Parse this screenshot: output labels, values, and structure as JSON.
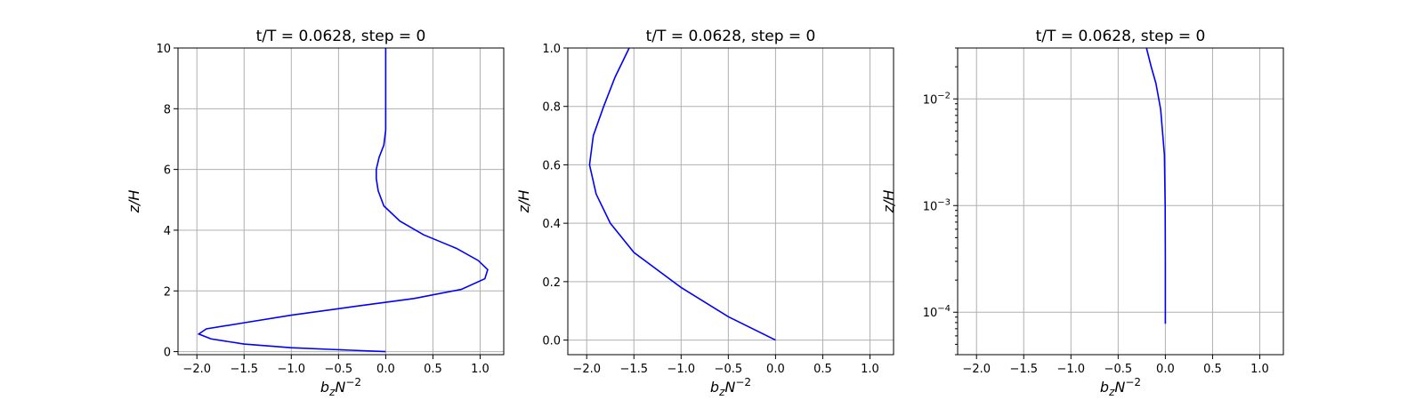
{
  "chart_data": [
    {
      "type": "line",
      "title": "t/T = 0.0628, step = 0",
      "xlabel": "b",
      "xlabel_sub": "z",
      "xlabel_N": "N",
      "xlabel_exp": "−2",
      "ylabel": "z/H",
      "xlim": [
        -2.2,
        1.25
      ],
      "ylim": [
        -0.1,
        10
      ],
      "yscale": "linear",
      "grid": true,
      "xticks": [
        -2.0,
        -1.5,
        -1.0,
        -0.5,
        0.0,
        0.5,
        1.0
      ],
      "xtick_labels": [
        "−2.0",
        "−1.5",
        "−1.0",
        "−0.5",
        "0.0",
        "0.5",
        "1.0"
      ],
      "yticks": [
        0,
        2,
        4,
        6,
        8,
        10
      ],
      "ytick_labels": [
        "0",
        "2",
        "4",
        "6",
        "8",
        "10"
      ],
      "series": [
        {
          "color": "#0000ff",
          "points": [
            [
              0.0,
              0.0
            ],
            [
              -0.4,
              0.05
            ],
            [
              -1.0,
              0.13
            ],
            [
              -1.5,
              0.25
            ],
            [
              -1.85,
              0.42
            ],
            [
              -1.98,
              0.58
            ],
            [
              -1.9,
              0.75
            ],
            [
              -1.5,
              0.95
            ],
            [
              -1.0,
              1.2
            ],
            [
              -0.3,
              1.5
            ],
            [
              0.3,
              1.75
            ],
            [
              0.8,
              2.05
            ],
            [
              1.05,
              2.4
            ],
            [
              1.08,
              2.7
            ],
            [
              0.98,
              3.0
            ],
            [
              0.75,
              3.4
            ],
            [
              0.4,
              3.85
            ],
            [
              0.15,
              4.3
            ],
            [
              -0.02,
              4.8
            ],
            [
              -0.08,
              5.3
            ],
            [
              -0.1,
              5.7
            ],
            [
              -0.1,
              6.0
            ],
            [
              -0.07,
              6.4
            ],
            [
              -0.02,
              6.8
            ],
            [
              0.0,
              7.3
            ],
            [
              0.0,
              8.0
            ],
            [
              0.0,
              10.0
            ]
          ]
        }
      ]
    },
    {
      "type": "line",
      "title": "t/T = 0.0628, step = 0",
      "xlabel": "b",
      "xlabel_sub": "z",
      "xlabel_N": "N",
      "xlabel_exp": "−2",
      "ylabel": "z/H",
      "xlim": [
        -2.2,
        1.25
      ],
      "ylim": [
        -0.05,
        1.0
      ],
      "yscale": "linear",
      "grid": true,
      "xticks": [
        -2.0,
        -1.5,
        -1.0,
        -0.5,
        0.0,
        0.5,
        1.0
      ],
      "xtick_labels": [
        "−2.0",
        "−1.5",
        "−1.0",
        "−0.5",
        "0.0",
        "0.5",
        "1.0"
      ],
      "yticks": [
        0.0,
        0.2,
        0.4,
        0.6,
        0.8,
        1.0
      ],
      "ytick_labels": [
        "0.0",
        "0.2",
        "0.4",
        "0.6",
        "0.8",
        "1.0"
      ],
      "series": [
        {
          "color": "#0000ff",
          "points": [
            [
              0.0,
              0.0
            ],
            [
              -0.5,
              0.08
            ],
            [
              -1.0,
              0.18
            ],
            [
              -1.5,
              0.3
            ],
            [
              -1.75,
              0.4
            ],
            [
              -1.9,
              0.5
            ],
            [
              -1.97,
              0.6
            ],
            [
              -1.93,
              0.7
            ],
            [
              -1.82,
              0.8
            ],
            [
              -1.7,
              0.9
            ],
            [
              -1.55,
              1.0
            ]
          ]
        }
      ]
    },
    {
      "type": "line",
      "title": "t/T = 0.0628, step = 0",
      "xlabel": "b",
      "xlabel_sub": "z",
      "xlabel_N": "N",
      "xlabel_exp": "−2",
      "ylabel": "z/H",
      "xlim": [
        -2.2,
        1.25
      ],
      "ylim": [
        4e-05,
        0.03
      ],
      "yscale": "log",
      "grid": true,
      "xticks": [
        -2.0,
        -1.5,
        -1.0,
        -0.5,
        0.0,
        0.5,
        1.0
      ],
      "xtick_labels": [
        "−2.0",
        "−1.5",
        "−1.0",
        "−0.5",
        "0.0",
        "0.5",
        "1.0"
      ],
      "yticks": [
        0.0001,
        0.001,
        0.01
      ],
      "ytick_labels": [
        "10",
        "10",
        "10"
      ],
      "ytick_exponents": [
        "−4",
        "−3",
        "−2"
      ],
      "series": [
        {
          "color": "#0000ff",
          "points": [
            [
              0.0,
              7.8e-05
            ],
            [
              0.0,
              0.0003
            ],
            [
              -0.002,
              0.001
            ],
            [
              -0.01,
              0.003
            ],
            [
              -0.05,
              0.008
            ],
            [
              -0.1,
              0.014
            ],
            [
              -0.15,
              0.02
            ],
            [
              -0.2,
              0.03
            ]
          ]
        }
      ]
    }
  ]
}
